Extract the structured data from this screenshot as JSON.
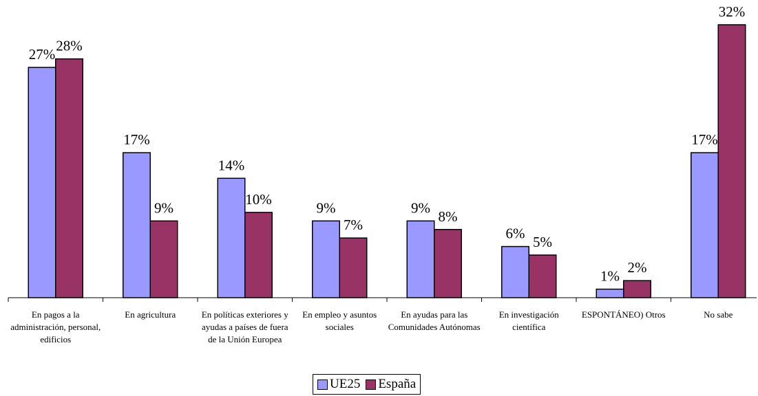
{
  "chart_data": {
    "type": "bar",
    "categories": [
      "En pagos a la administración, personal, edificios",
      "En agricultura",
      "En políticas exteriores y ayudas a países de fuera de la Unión Europea",
      "En empleo y asuntos sociales",
      "En ayudas para las Comunidades Autónomas",
      "En investigación científica",
      "ESPONTÁNEO) Otros",
      "No sabe"
    ],
    "series": [
      {
        "name": "UE25",
        "color": "#9999ff",
        "values": [
          27,
          17,
          14,
          9,
          9,
          6,
          1,
          17
        ],
        "labels": [
          "27%",
          "17%",
          "14%",
          "9%",
          "9%",
          "6%",
          "1%",
          "17%"
        ]
      },
      {
        "name": "España",
        "color": "#993366",
        "values": [
          28,
          9,
          10,
          7,
          8,
          5,
          2,
          32
        ],
        "labels": [
          "28%",
          "9%",
          "10%",
          "7%",
          "8%",
          "5%",
          "2%",
          "32%"
        ]
      }
    ],
    "ylim": [
      0,
      32
    ],
    "grid": false,
    "legend_position": "bottom"
  }
}
